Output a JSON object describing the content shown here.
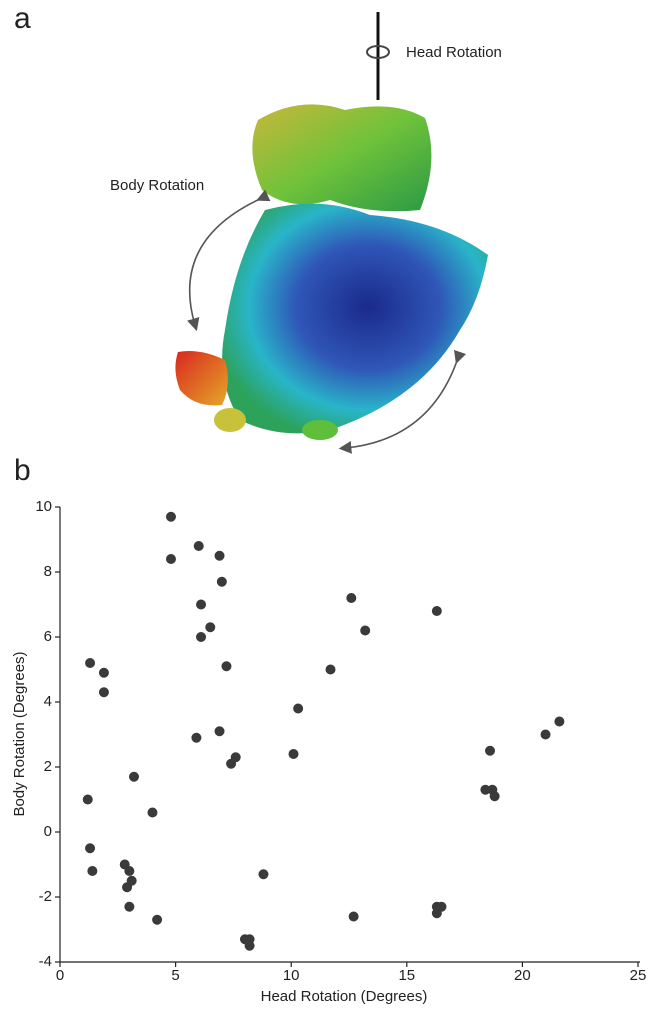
{
  "panel_a": {
    "label": "a",
    "annotations": [
      "Head Rotation",
      "Body Rotation"
    ]
  },
  "chart_data": {
    "type": "scatter",
    "panel_label": "b",
    "xlabel": "Head Rotation (Degrees)",
    "ylabel": "Body Rotation (Degrees)",
    "xlim": [
      0,
      25
    ],
    "ylim": [
      -4,
      10
    ],
    "xticks": [
      0,
      5,
      10,
      15,
      20,
      25
    ],
    "yticks": [
      -4,
      -2,
      0,
      2,
      4,
      6,
      8,
      10
    ],
    "color": "#3a3a3a",
    "grid": false,
    "x": [
      4.8,
      4.8,
      6.0,
      6.9,
      7.0,
      6.1,
      6.5,
      6.1,
      7.2,
      5.9,
      6.9,
      7.6,
      7.4,
      1.3,
      1.9,
      1.9,
      3.2,
      1.2,
      4.0,
      1.3,
      1.4,
      2.8,
      3.0,
      3.1,
      2.9,
      3.0,
      4.2,
      8.0,
      8.2,
      8.2,
      8.8,
      12.6,
      13.2,
      11.7,
      10.3,
      10.1,
      12.7,
      16.3,
      16.3,
      16.5,
      16.3,
      18.6,
      18.4,
      18.7,
      18.8,
      21.0,
      21.6
    ],
    "y": [
      9.7,
      8.4,
      8.8,
      8.5,
      7.7,
      7.0,
      6.3,
      6.0,
      5.1,
      2.9,
      3.1,
      2.3,
      2.1,
      5.2,
      4.9,
      4.3,
      1.7,
      1.0,
      0.6,
      -0.5,
      -1.2,
      -1.0,
      -1.2,
      -1.5,
      -1.7,
      -2.3,
      -2.7,
      -3.3,
      -3.3,
      -3.5,
      -1.3,
      7.2,
      6.2,
      5.0,
      3.8,
      2.4,
      -2.6,
      6.8,
      -2.3,
      -2.3,
      -2.5,
      2.5,
      1.3,
      1.3,
      1.1,
      3.0,
      3.4
    ]
  }
}
